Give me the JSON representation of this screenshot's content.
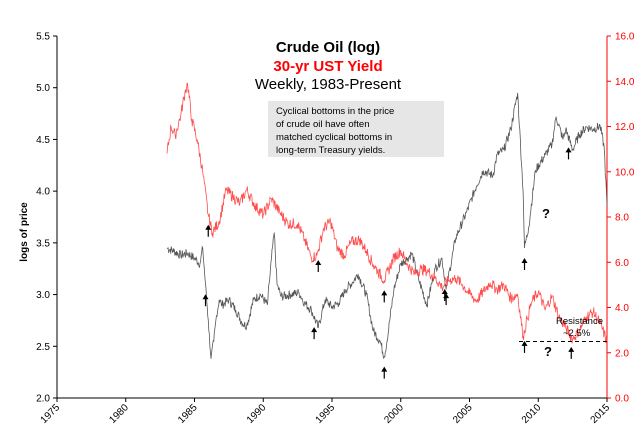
{
  "chart_data": {
    "type": "line",
    "title": "Crude Oil (log)",
    "subtitle_red": "30-yr UST Yield",
    "subtitle": "Weekly, 1983-Present",
    "ylabel": "logs of price",
    "xlim": [
      1975,
      2015
    ],
    "ylim_left": [
      2.0,
      5.5
    ],
    "ylim_right": [
      0.0,
      16.0
    ],
    "x_ticks": [
      "1975",
      "1980",
      "1985",
      "1990",
      "1995",
      "2000",
      "2005",
      "2010",
      "2015"
    ],
    "y_left_ticks": [
      "2.0",
      "2.5",
      "3.0",
      "3.5",
      "4.0",
      "4.5",
      "5.0",
      "5.5"
    ],
    "y_right_ticks": [
      "0.0",
      "2.0",
      "4.0",
      "6.0",
      "8.0",
      "10.0",
      "12.0",
      "14.0",
      "16.0"
    ],
    "series": [
      {
        "axis": "left",
        "color": "#555555",
        "x": [
          1983.0,
          1983.5,
          1984.0,
          1984.5,
          1985.0,
          1985.4,
          1985.6,
          1985.8,
          1986.0,
          1986.2,
          1986.4,
          1986.6,
          1986.8,
          1987.0,
          1987.5,
          1988.0,
          1988.5,
          1988.8,
          1989.3,
          1989.8,
          1990.3,
          1990.6,
          1990.8,
          1991.0,
          1991.3,
          1992.0,
          1992.6,
          1993.0,
          1993.5,
          1994.0,
          1994.5,
          1995.0,
          1995.5,
          1996.0,
          1996.5,
          1996.9,
          1997.5,
          1998.0,
          1998.5,
          1998.8,
          1999.0,
          1999.5,
          2000.0,
          2000.5,
          2000.8,
          2001.3,
          2001.9,
          2002.5,
          2003.0,
          2003.3,
          2004.0,
          2004.8,
          2005.5,
          2006.0,
          2006.7,
          2007.0,
          2007.5,
          2008.0,
          2008.5,
          2008.9,
          2009.0,
          2009.3,
          2009.8,
          2010.5,
          2011.0,
          2011.3,
          2011.8,
          2012.0,
          2012.5,
          2013.0,
          2013.5,
          2014.0,
          2014.5,
          2014.8,
          2015.0
        ],
        "values": [
          3.45,
          3.42,
          3.38,
          3.4,
          3.35,
          3.3,
          3.45,
          3.1,
          2.75,
          2.38,
          2.55,
          2.8,
          2.95,
          2.9,
          2.95,
          2.85,
          2.72,
          2.7,
          2.95,
          3.0,
          2.9,
          3.35,
          3.6,
          3.1,
          2.98,
          3.0,
          3.02,
          2.92,
          2.85,
          2.68,
          2.95,
          2.88,
          2.92,
          3.05,
          3.12,
          3.2,
          3.0,
          2.65,
          2.55,
          2.4,
          2.55,
          3.05,
          3.3,
          3.35,
          3.4,
          3.15,
          2.9,
          3.25,
          3.35,
          3.05,
          3.55,
          3.8,
          4.05,
          4.2,
          4.15,
          4.35,
          4.4,
          4.6,
          4.95,
          4.0,
          3.45,
          3.65,
          4.2,
          4.35,
          4.45,
          4.72,
          4.5,
          4.6,
          4.4,
          4.55,
          4.62,
          4.6,
          4.63,
          4.42,
          3.85
        ]
      },
      {
        "axis": "right",
        "color": "#ff4c4c",
        "x": [
          1983.0,
          1983.3,
          1983.6,
          1984.0,
          1984.3,
          1984.5,
          1984.8,
          1985.2,
          1985.6,
          1986.0,
          1986.3,
          1986.8,
          1987.3,
          1987.8,
          1988.3,
          1988.8,
          1989.4,
          1990.0,
          1990.6,
          1991.2,
          1991.8,
          1992.5,
          1993.0,
          1993.5,
          1993.9,
          1994.4,
          1994.9,
          1995.4,
          1995.9,
          1996.4,
          1997.0,
          1997.5,
          1998.0,
          1998.8,
          1999.5,
          2000.0,
          2000.5,
          2001.0,
          2001.5,
          2002.0,
          2002.5,
          2003.0,
          2003.5,
          2004.0,
          2004.5,
          2005.0,
          2005.5,
          2006.0,
          2006.5,
          2007.0,
          2007.5,
          2008.0,
          2008.5,
          2008.9,
          2009.2,
          2009.5,
          2010.0,
          2010.5,
          2011.0,
          2011.5,
          2012.0,
          2012.5,
          2013.0,
          2013.5,
          2014.0,
          2014.5,
          2015.0
        ],
        "values": [
          10.8,
          12.0,
          11.6,
          12.5,
          13.5,
          13.9,
          12.3,
          11.4,
          10.0,
          8.1,
          7.3,
          7.8,
          9.2,
          8.9,
          8.6,
          9.2,
          8.5,
          8.1,
          8.8,
          8.2,
          7.7,
          7.7,
          7.0,
          6.2,
          6.3,
          7.5,
          7.8,
          6.6,
          6.3,
          6.9,
          7.0,
          6.5,
          5.9,
          5.2,
          6.2,
          6.5,
          5.9,
          5.5,
          5.7,
          5.6,
          5.3,
          4.9,
          5.2,
          5.3,
          5.0,
          4.6,
          4.3,
          4.7,
          5.1,
          4.8,
          5.0,
          4.4,
          4.6,
          2.7,
          3.5,
          4.2,
          4.7,
          3.9,
          4.5,
          3.6,
          3.1,
          2.6,
          3.0,
          3.6,
          3.8,
          3.3,
          2.5
        ]
      }
    ],
    "annotations": {
      "box_lines": [
        "Cyclical bottoms in the price",
        "of crude oil have often",
        "matched cyclical bottoms in",
        "long-term Treasury yields."
      ],
      "resistance_label": "Resistance",
      "resistance_value_label": "~2.5%",
      "question_mark": "?",
      "resistance_level": 2.5,
      "resistance_from": 2008.6,
      "resistance_to": 2015.0,
      "up_arrows_oil": [
        1985.8,
        1993.7,
        1998.8,
        2003.2,
        2009.0,
        2012.2
      ],
      "up_arrows_yield": [
        1986.0,
        1994.0,
        1998.8,
        2003.3,
        2009.0,
        2012.4
      ]
    },
    "colors": {
      "oil": "#555555",
      "yield": "#ff4c4c",
      "right_axis": "#ff0000"
    }
  }
}
